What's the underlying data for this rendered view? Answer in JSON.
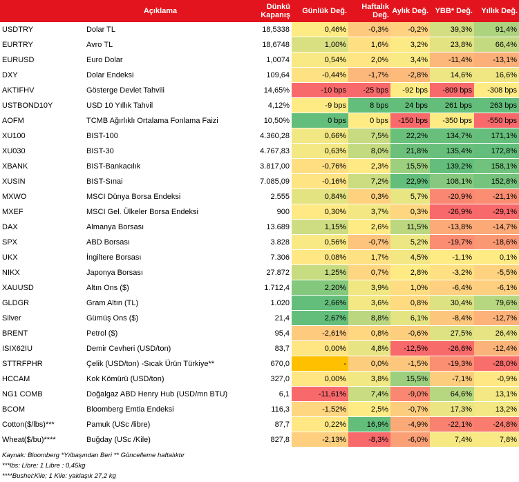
{
  "headers": {
    "code": "",
    "desc": "Açıklama",
    "close": "Dünkü Kapanış",
    "daily": "Günlük Değ.",
    "weekly": "Haftalık Değ.",
    "monthly": "Aylık Değ.",
    "ytd": "YBB* Değ.",
    "yearly": "Yıllık Değ."
  },
  "colors": {
    "header_bg": "#e3141d",
    "scale_green": "#63be7b",
    "scale_yellow": "#ffeb84",
    "scale_red": "#f8696b",
    "highlight": "#ffc000"
  },
  "rows": [
    {
      "code": "USDTRY",
      "desc": "Dolar TL",
      "close": "18,5338",
      "daily": "0,46%",
      "weekly": "-0,3%",
      "monthly": "-0,2%",
      "ytd": "39,3%",
      "yearly": "91,4%"
    },
    {
      "code": "EURTRY",
      "desc": "Avro TL",
      "close": "18,6748",
      "daily": "1,00%",
      "weekly": "1,6%",
      "monthly": "3,2%",
      "ytd": "23,8%",
      "yearly": "66,4%"
    },
    {
      "code": "EURUSD",
      "desc": "Euro Dolar",
      "close": "1,0074",
      "daily": "0,54%",
      "weekly": "2,0%",
      "monthly": "3,4%",
      "ytd": "-11,4%",
      "yearly": "-13,1%"
    },
    {
      "code": "DXY",
      "desc": "Dolar Endeksi",
      "close": "109,64",
      "daily": "-0,44%",
      "weekly": "-1,7%",
      "monthly": "-2,8%",
      "ytd": "14,6%",
      "yearly": "16,6%"
    },
    {
      "code": "AKTIFHV",
      "desc": "Gösterge Devlet Tahvili",
      "close": "14,65%",
      "daily": "-10 bps",
      "weekly": "-25 bps",
      "monthly": "-92 bps",
      "ytd": "-809 bps",
      "yearly": "-308 bps"
    },
    {
      "code": "USTBOND10Y",
      "desc": "USD 10 Yıllık Tahvil",
      "close": "4,12%",
      "daily": "-9 bps",
      "weekly": "8 bps",
      "monthly": "24 bps",
      "ytd": "261 bps",
      "yearly": "263 bps"
    },
    {
      "code": "AOFM",
      "desc": "TCMB Ağırlıklı Ortalama Fonlama Faizi",
      "close": "10,50%",
      "daily": "0 bps",
      "weekly": "0 bps",
      "monthly": "-150 bps",
      "ytd": "-350 bps",
      "yearly": "-550 bps"
    },
    {
      "code": "XU100",
      "desc": "BIST-100",
      "close": "4.360,28",
      "daily": "0,66%",
      "weekly": "7,5%",
      "monthly": "22,2%",
      "ytd": "134,7%",
      "yearly": "171,1%"
    },
    {
      "code": "XU030",
      "desc": "BIST-30",
      "close": "4.767,83",
      "daily": "0,63%",
      "weekly": "8,0%",
      "monthly": "21,8%",
      "ytd": "135,4%",
      "yearly": "172,8%"
    },
    {
      "code": "XBANK",
      "desc": "BIST-Bankacılık",
      "close": "3.817,00",
      "daily": "-0,76%",
      "weekly": "2,3%",
      "monthly": "15,5%",
      "ytd": "139,2%",
      "yearly": "158,1%"
    },
    {
      "code": "XUSIN",
      "desc": "BIST-Sınai",
      "close": "7.085,09",
      "daily": "-0,16%",
      "weekly": "7,2%",
      "monthly": "22,9%",
      "ytd": "108,1%",
      "yearly": "152,8%"
    },
    {
      "code": "MXWO",
      "desc": "MSCI Dünya Borsa Endeksi",
      "close": "2.555",
      "daily": "0,84%",
      "weekly": "0,3%",
      "monthly": "5,7%",
      "ytd": "-20,9%",
      "yearly": "-21,1%"
    },
    {
      "code": "MXEF",
      "desc": "MSCI Gel. Ülkeler Borsa Endeksi",
      "close": "900",
      "daily": "0,30%",
      "weekly": "3,7%",
      "monthly": "0,3%",
      "ytd": "-26,9%",
      "yearly": "-29,1%"
    },
    {
      "code": "DAX",
      "desc": "Almanya Borsası",
      "close": "13.689",
      "daily": "1,15%",
      "weekly": "2,6%",
      "monthly": "11,5%",
      "ytd": "-13,8%",
      "yearly": "-14,7%"
    },
    {
      "code": "SPX",
      "desc": "ABD Borsası",
      "close": "3.828",
      "daily": "0,56%",
      "weekly": "-0,7%",
      "monthly": "5,2%",
      "ytd": "-19,7%",
      "yearly": "-18,6%"
    },
    {
      "code": "UKX",
      "desc": "İngiltere Borsası",
      "close": "7.306",
      "daily": "0,08%",
      "weekly": "1,7%",
      "monthly": "4,5%",
      "ytd": "-1,1%",
      "yearly": "0,1%"
    },
    {
      "code": "NIKX",
      "desc": "Japonya Borsası",
      "close": "27.872",
      "daily": "1,25%",
      "weekly": "0,7%",
      "monthly": "2,8%",
      "ytd": "-3,2%",
      "yearly": "-5,5%"
    },
    {
      "code": "XAUUSD",
      "desc": "Altın Ons ($)",
      "close": "1.712,4",
      "daily": "2,20%",
      "weekly": "3,9%",
      "monthly": "1,0%",
      "ytd": "-6,4%",
      "yearly": "-6,1%"
    },
    {
      "code": "GLDGR",
      "desc": "Gram Altın (TL)",
      "close": "1.020",
      "daily": "2,66%",
      "weekly": "3,6%",
      "monthly": "0,8%",
      "ytd": "30,4%",
      "yearly": "79,6%"
    },
    {
      "code": "Silver",
      "desc": "Gümüş Ons ($)",
      "close": "21,4",
      "daily": "2,67%",
      "weekly": "8,8%",
      "monthly": "6,1%",
      "ytd": "-8,4%",
      "yearly": "-12,7%"
    },
    {
      "code": "BRENT",
      "desc": "Petrol ($)",
      "close": "95,4",
      "daily": "-2,61%",
      "weekly": "0,8%",
      "monthly": "-0,6%",
      "ytd": "27,5%",
      "yearly": "26,4%"
    },
    {
      "code": "ISIX62IU",
      "desc": "Demir Cevheri (USD/ton)",
      "close": "83,7",
      "daily": "0,00%",
      "weekly": "4,8%",
      "monthly": "-12,5%",
      "ytd": "-26,6%",
      "yearly": "-12,4%"
    },
    {
      "code": "STTRFPHR",
      "desc": "Çelik (USD/ton) -Sıcak Ürün Türkiye**",
      "close": "670,0",
      "daily": "-",
      "weekly": "0,0%",
      "monthly": "-1,5%",
      "ytd": "-19,3%",
      "yearly": "-28,0%"
    },
    {
      "code": "HCCAM",
      "desc": "Kok Kömürü (USD/ton)",
      "close": "327,0",
      "daily": "0,00%",
      "weekly": "3,8%",
      "monthly": "15,5%",
      "ytd": "-7,1%",
      "yearly": "-0,9%"
    },
    {
      "code": "NG1 COMB",
      "desc": "Doğalgaz ABD Henry Hub (USD/mn BTU)",
      "close": "6,1",
      "daily": "-11,61%",
      "weekly": "7,4%",
      "monthly": "-9,0%",
      "ytd": "64,6%",
      "yearly": "13,1%"
    },
    {
      "code": "BCOM",
      "desc": "Bloomberg Emtia Endeksi",
      "close": "116,3",
      "daily": "-1,52%",
      "weekly": "2,5%",
      "monthly": "-0,7%",
      "ytd": "17,3%",
      "yearly": "13,2%"
    },
    {
      "code": "Cotton($/lbs)***",
      "desc": "Pamuk (USc /libre)",
      "close": "87,7",
      "daily": "0,22%",
      "weekly": "16,9%",
      "monthly": "-4,9%",
      "ytd": "-22,1%",
      "yearly": "-24,8%"
    },
    {
      "code": "Wheat($/bu)****",
      "desc": "Buğday (USc /Kile)",
      "close": "827,8",
      "daily": "-2,13%",
      "weekly": "-8,3%",
      "monthly": "-6,0%",
      "ytd": "7,4%",
      "yearly": "7,8%"
    }
  ],
  "footer": [
    "Kaynak: Bloomberg *Yılbaşından Beri  ** Güncelleme haftalıktır",
    "***lbs: Libre; 1 Libre : 0,45kg",
    "****Bushel:Kile; 1 Kile: yaklaşık 27,2 kg"
  ]
}
